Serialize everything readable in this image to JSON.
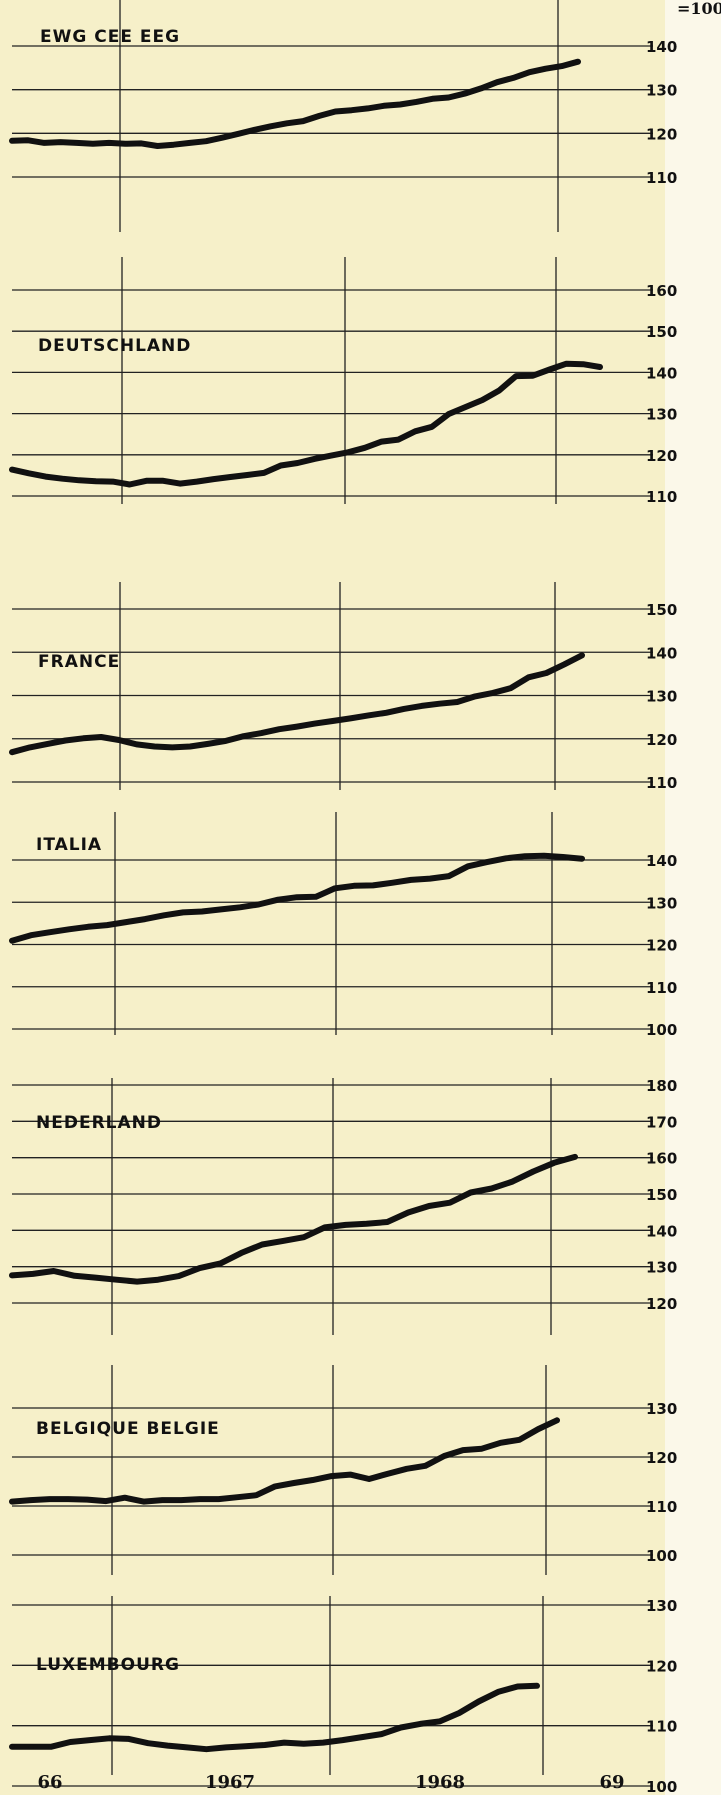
{
  "colors": {
    "paper": "#f6f0c9",
    "paper_right": "#fbf8e9",
    "ink": "#111111",
    "grid": "#222222"
  },
  "base_label": "=100",
  "x_axis": {
    "labels": [
      "66",
      "1967",
      "1968",
      "69"
    ]
  },
  "chart_data": [
    {
      "type": "line",
      "title": "EWG CEE EEG",
      "ylim": [
        110,
        140
      ],
      "yticks": [
        110,
        120,
        130,
        140
      ],
      "grid": true,
      "series": [
        {
          "values": [
            118.3,
            118.4,
            117.8,
            118.0,
            117.8,
            117.6,
            117.8,
            117.6,
            117.7,
            117.1,
            117.4,
            117.8,
            118.2,
            119.0,
            119.9,
            120.8,
            121.6,
            122.3,
            122.8,
            124.0,
            125.0,
            125.3,
            125.7,
            126.3,
            126.6,
            127.2,
            127.9,
            128.2,
            129.1,
            130.3,
            131.7,
            132.7,
            134.0,
            134.8,
            135.4,
            136.4
          ]
        }
      ]
    },
    {
      "type": "line",
      "title": "DEUTSCHLAND",
      "ylim": [
        110,
        160
      ],
      "yticks": [
        110,
        120,
        130,
        140,
        150,
        160
      ],
      "grid": true,
      "series": [
        {
          "values": [
            116.4,
            115.5,
            114.7,
            114.2,
            113.8,
            113.6,
            113.5,
            112.8,
            113.7,
            113.7,
            113.0,
            113.5,
            114.1,
            114.6,
            115.1,
            115.6,
            117.4,
            118.0,
            119.0,
            119.8,
            120.6,
            121.7,
            123.2,
            123.7,
            125.7,
            126.8,
            129.9,
            131.6,
            133.3,
            135.6,
            139.1,
            139.2,
            140.7,
            142.1,
            142.0,
            141.3
          ]
        }
      ]
    },
    {
      "type": "line",
      "title": "FRANCE",
      "ylim": [
        110,
        150
      ],
      "yticks": [
        110,
        120,
        130,
        140,
        150
      ],
      "grid": true,
      "series": [
        {
          "values": [
            116.9,
            118.0,
            118.8,
            119.6,
            120.1,
            120.4,
            119.7,
            118.7,
            118.2,
            118.0,
            118.2,
            118.8,
            119.5,
            120.6,
            121.3,
            122.2,
            122.8,
            123.5,
            124.1,
            124.7,
            125.4,
            126.0,
            126.9,
            127.6,
            128.1,
            128.5,
            129.8,
            130.6,
            131.7,
            134.2,
            135.2,
            137.2,
            139.3
          ]
        }
      ]
    },
    {
      "type": "line",
      "title": "ITALIA",
      "ylim": [
        100,
        140
      ],
      "yticks": [
        100,
        110,
        120,
        130,
        140
      ],
      "grid": true,
      "series": [
        {
          "values": [
            120.9,
            122.2,
            122.9,
            123.6,
            124.2,
            124.6,
            125.3,
            126.0,
            126.9,
            127.6,
            127.8,
            128.3,
            128.8,
            129.5,
            130.6,
            131.2,
            131.3,
            133.3,
            133.9,
            134.0,
            134.6,
            135.3,
            135.6,
            136.2,
            138.5,
            139.5,
            140.4,
            140.9,
            141.0,
            140.7,
            140.3
          ]
        }
      ]
    },
    {
      "type": "line",
      "title": "NEDERLAND",
      "ylim": [
        120,
        180
      ],
      "yticks": [
        120,
        130,
        140,
        150,
        160,
        170,
        180
      ],
      "grid": true,
      "series": [
        {
          "values": [
            127.6,
            128.0,
            128.8,
            127.5,
            127.0,
            126.4,
            125.9,
            126.4,
            127.4,
            129.6,
            130.9,
            133.8,
            136.1,
            137.1,
            138.1,
            140.8,
            141.5,
            141.8,
            142.3,
            144.9,
            146.7,
            147.6,
            150.4,
            151.5,
            153.4,
            156.2,
            158.6,
            160.2
          ]
        }
      ]
    },
    {
      "type": "line",
      "title": "BELGIQUE BELGIE",
      "ylim": [
        100,
        130
      ],
      "yticks": [
        100,
        110,
        120,
        130
      ],
      "grid": true,
      "series": [
        {
          "values": [
            110.9,
            111.2,
            111.4,
            111.4,
            111.3,
            111.0,
            111.7,
            110.9,
            111.2,
            111.2,
            111.4,
            111.4,
            111.8,
            112.2,
            114.0,
            114.7,
            115.3,
            116.1,
            116.4,
            115.5,
            116.6,
            117.6,
            118.2,
            120.2,
            121.4,
            121.7,
            122.9,
            123.5,
            125.7,
            127.5
          ]
        }
      ]
    },
    {
      "type": "line",
      "title": "LUXEMBOURG",
      "ylim": [
        100,
        130
      ],
      "yticks": [
        100,
        110,
        120,
        130
      ],
      "grid": true,
      "series": [
        {
          "values": [
            106.5,
            106.5,
            106.5,
            107.3,
            107.6,
            107.9,
            107.8,
            107.1,
            106.7,
            106.4,
            106.1,
            106.4,
            106.6,
            106.8,
            107.2,
            107.0,
            107.2,
            107.6,
            108.1,
            108.6,
            109.7,
            110.3,
            110.7,
            112.1,
            114.0,
            115.6,
            116.5,
            116.6
          ]
        }
      ]
    }
  ]
}
